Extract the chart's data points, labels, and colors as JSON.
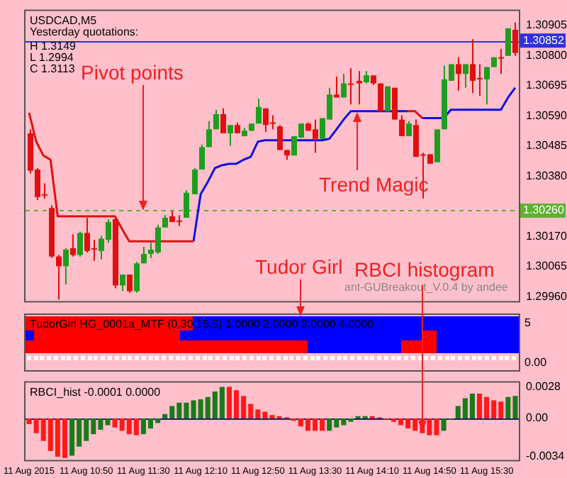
{
  "chart_data": [
    {
      "type": "candlestick",
      "title": "USDCAD,M5",
      "categories": [
        "11 Aug 2015",
        null,
        null,
        null,
        null,
        null,
        null,
        null,
        "11 Aug 10:50",
        null,
        null,
        null,
        null,
        null,
        null,
        null,
        "11 Aug 11:30",
        null,
        null,
        null,
        null,
        null,
        null,
        null,
        "11 Aug 12:10",
        null,
        null,
        null,
        null,
        null,
        null,
        null,
        "11 Aug 12:50",
        null,
        null,
        null,
        null,
        null,
        null,
        null,
        "11 Aug 13:30",
        null,
        null,
        null,
        null,
        null,
        null,
        null,
        "11 Aug 14:10",
        null,
        null,
        null,
        null,
        null,
        null,
        null,
        "11 Aug 14:50",
        null,
        null,
        null,
        null,
        null,
        null,
        null,
        "11 Aug 15:30",
        null,
        null,
        null,
        null
      ],
      "ohlc": [
        [
          1.30529,
          1.30543,
          1.30389,
          1.30399
        ],
        [
          1.30403,
          1.30408,
          1.30297,
          1.30307
        ],
        [
          1.30317,
          1.30355,
          1.30302,
          1.30312
        ],
        [
          1.30269,
          1.30278,
          1.30095,
          1.301
        ],
        [
          1.301,
          1.30105,
          1.2995,
          1.30066
        ],
        [
          1.30066,
          1.30129,
          1.30003,
          1.30124
        ],
        [
          1.30129,
          1.30177,
          1.301,
          1.30105
        ],
        [
          1.30105,
          1.30187,
          1.301,
          1.30182
        ],
        [
          1.30182,
          1.30235,
          1.30114,
          1.30119
        ],
        [
          1.30124,
          1.30158,
          1.30085,
          1.30129
        ],
        [
          1.30119,
          1.30172,
          1.3009,
          1.30162
        ],
        [
          1.30158,
          1.3023,
          1.30148,
          1.3022
        ],
        [
          1.3023,
          1.30235,
          1.29989,
          1.29999
        ],
        [
          1.29999,
          1.30037,
          1.29979,
          1.30037
        ],
        [
          1.30037,
          1.30037,
          1.29974,
          1.29979
        ],
        [
          1.29979,
          1.30081,
          1.29974,
          1.30076
        ],
        [
          1.30076,
          1.30134,
          1.30076,
          1.30109
        ],
        [
          1.30109,
          1.30148,
          1.30095,
          1.30124
        ],
        [
          1.30114,
          1.30211,
          1.30109,
          1.30201
        ],
        [
          1.30201,
          1.30244,
          1.30201,
          1.30235
        ],
        [
          1.3024,
          1.30259,
          1.3022,
          1.3022
        ],
        [
          1.30225,
          1.30244,
          1.30206,
          1.30225
        ],
        [
          1.30235,
          1.30331,
          1.30235,
          1.30322
        ],
        [
          1.30317,
          1.30408,
          1.30317,
          1.30403
        ],
        [
          1.30403,
          1.3049,
          1.30403,
          1.30481
        ],
        [
          1.30481,
          1.30572,
          1.30481,
          1.30543
        ],
        [
          1.30543,
          1.30611,
          1.30543,
          1.30596
        ],
        [
          1.30596,
          1.30616,
          1.30529,
          1.30529
        ],
        [
          1.30529,
          1.30558,
          1.30485,
          1.30558
        ],
        [
          1.30558,
          1.30567,
          1.30529,
          1.30529
        ],
        [
          1.30519,
          1.30548,
          1.30519,
          1.30538
        ],
        [
          1.30538,
          1.30563,
          1.30538,
          1.30563
        ],
        [
          1.30563,
          1.3065,
          1.30563,
          1.30621
        ],
        [
          1.30616,
          1.30616,
          1.30534,
          1.30558
        ],
        [
          1.30567,
          1.30592,
          1.30543,
          1.30567
        ],
        [
          1.30553,
          1.30558,
          1.30471,
          1.30471
        ],
        [
          1.30471,
          1.30471,
          1.30437,
          1.30452
        ],
        [
          1.30452,
          1.30519,
          1.30452,
          1.30519
        ],
        [
          1.30514,
          1.30563,
          1.30514,
          1.30563
        ],
        [
          1.30563,
          1.30567,
          1.30538,
          1.30538
        ],
        [
          1.30543,
          1.30577,
          1.30461,
          1.3051
        ],
        [
          1.3051,
          1.30582,
          1.3051,
          1.30582
        ],
        [
          1.30577,
          1.30688,
          1.30577,
          1.30664
        ],
        [
          1.30664,
          1.30727,
          1.30654,
          1.30654
        ],
        [
          1.30654,
          1.30736,
          1.30654,
          1.30703
        ],
        [
          1.30703,
          1.30756,
          1.3063,
          1.30703
        ],
        [
          1.30712,
          1.30746,
          1.3063,
          1.30703
        ],
        [
          1.30707,
          1.30746,
          1.30703,
          1.30731
        ],
        [
          1.30731,
          1.30731,
          1.30698,
          1.30703
        ],
        [
          1.30703,
          1.30703,
          1.30606,
          1.30606
        ],
        [
          1.30606,
          1.30693,
          1.30606,
          1.30693
        ],
        [
          1.30688,
          1.30688,
          1.30577,
          1.30577
        ],
        [
          1.30577,
          1.30592,
          1.30519,
          1.30519
        ],
        [
          1.30519,
          1.30572,
          1.30519,
          1.30563
        ],
        [
          1.30558,
          1.30577,
          1.30447,
          1.30447
        ],
        [
          1.30456,
          1.30461,
          1.30302,
          1.30456
        ],
        [
          1.30456,
          1.30456,
          1.30423,
          1.30423
        ],
        [
          1.30428,
          1.30543,
          1.30428,
          1.30543
        ],
        [
          1.30543,
          1.30765,
          1.30543,
          1.30717
        ],
        [
          1.30712,
          1.3077,
          1.30712,
          1.3077
        ],
        [
          1.3077,
          1.30794,
          1.30678,
          1.30736
        ],
        [
          1.30736,
          1.3077,
          1.30688,
          1.3077
        ],
        [
          1.3077,
          1.30857,
          1.30669,
          1.30712
        ],
        [
          1.30722,
          1.3077,
          1.30659,
          1.30722
        ],
        [
          1.30717,
          1.3076,
          1.3063,
          1.3076
        ],
        [
          1.3076,
          1.30794,
          1.3076,
          1.30794
        ],
        [
          1.30794,
          1.30823,
          1.30736,
          1.30794
        ],
        [
          1.30799,
          1.30895,
          1.30799,
          1.30895
        ],
        [
          1.3089,
          1.30915,
          1.30799,
          1.30809
        ]
      ],
      "colors": [
        "#e01010",
        "#e01010",
        "#e01010",
        "#e01010",
        "#e01010",
        "#1e9e1e",
        "#e01010",
        "#1e9e1e",
        "#e01010",
        "#e01010",
        "#1e9e1e",
        "#1e9e1e",
        "#e01010",
        "#1e9e1e",
        "#e01010",
        "#1e9e1e",
        "#1e9e1e",
        "#1e9e1e",
        "#1e9e1e",
        "#1e9e1e",
        "#e01010",
        "#e01010",
        "#1e9e1e",
        "#1e9e1e",
        "#1e9e1e",
        "#1e9e1e",
        "#1e9e1e",
        "#e01010",
        "#1e9e1e",
        "#e01010",
        "#1e9e1e",
        "#1e9e1e",
        "#1e9e1e",
        "#e01010",
        "#e01010",
        "#e01010",
        "#e01010",
        "#1e9e1e",
        "#1e9e1e",
        "#e01010",
        "#e01010",
        "#1e9e1e",
        "#1e9e1e",
        "#e01010",
        "#1e9e1e",
        "#e01010",
        "#e01010",
        "#1e9e1e",
        "#e01010",
        "#e01010",
        "#1e9e1e",
        "#e01010",
        "#e01010",
        "#1e9e1e",
        "#e01010",
        "#e01010",
        "#e01010",
        "#1e9e1e",
        "#1e9e1e",
        "#1e9e1e",
        "#e01010",
        "#1e9e1e",
        "#e01010",
        "#e01010",
        "#1e9e1e",
        "#1e9e1e",
        "#e01010",
        "#1e9e1e",
        "#e01010"
      ],
      "series": [
        {
          "type": "line",
          "color": "#e01010",
          "values": [
            1.30601,
            1.305,
            1.30452,
            1.30437,
            1.3024,
            1.3024,
            1.3024,
            1.3024,
            1.3024,
            1.3024,
            1.3024,
            1.3024,
            1.3024,
            1.30196,
            1.30153,
            1.30153,
            1.30153,
            1.30153,
            1.30153,
            1.30153,
            1.30153,
            1.30153,
            1.30153,
            1.30153,
            null,
            null,
            null,
            null,
            null,
            null,
            null,
            null,
            null,
            null,
            null,
            null,
            null,
            null,
            null,
            null,
            null,
            null,
            null,
            null,
            null,
            null,
            null,
            null,
            null,
            null,
            null,
            null,
            null,
            1.30606,
            1.30606,
            1.30582,
            null,
            null,
            null,
            null,
            null,
            null,
            null,
            null,
            null,
            null,
            null,
            null,
            null
          ]
        },
        {
          "type": "line",
          "color": "#1010e0",
          "values": [
            null,
            null,
            null,
            null,
            null,
            null,
            null,
            null,
            null,
            null,
            null,
            null,
            null,
            null,
            null,
            null,
            null,
            null,
            null,
            null,
            null,
            null,
            null,
            1.30153,
            1.30317,
            1.3036,
            1.30408,
            1.30418,
            1.30423,
            1.30423,
            1.30437,
            1.30447,
            1.305,
            1.30505,
            1.30505,
            1.30505,
            1.30505,
            1.30505,
            1.30505,
            1.30505,
            1.30505,
            1.30505,
            1.3051,
            1.30543,
            1.30577,
            1.30606,
            1.30606,
            1.30606,
            1.30606,
            1.30606,
            1.30606,
            1.30606,
            1.30606,
            1.30606,
            null,
            1.30582,
            1.30582,
            1.30582,
            1.30582,
            1.30611,
            1.30611,
            1.30611,
            1.30611,
            1.30611,
            1.30611,
            1.30611,
            1.30611,
            1.30654,
            1.30688
          ]
        }
      ],
      "ylim": [
        1.2994,
        1.3096
      ],
      "yticks": [
        1.30905,
        {
          "value": 1.308,
          "label": "1.30800"
        },
        1.30695,
        {
          "value": 1.3059,
          "label": "1.30590"
        },
        1.30485,
        {
          "value": 1.3038,
          "label": "1.30380"
        },
        {
          "value": 1.3017,
          "label": "1.30170"
        },
        1.30065,
        {
          "value": 1.2996,
          "label": "1.29960"
        }
      ],
      "tick_labels": "y",
      "ref_lines": [
        {
          "axis": "y",
          "value": 1.30852,
          "label": "1.30852",
          "color": "#3030e0",
          "line_style": "solid"
        },
        {
          "axis": "y",
          "value": 1.3026,
          "label": "1.30260",
          "color": "#60b030",
          "line_style": "dashed"
        }
      ],
      "annotations": [
        "Yesterday quotations:",
        "H 1.3149",
        "L 1.2994",
        "C 1.3113",
        {
          "text": "Pivot points",
          "x": "11 Aug 11:30",
          "y": 1.3026
        },
        "Trend Magic",
        "Tudor Girl",
        "ant-GUBreakout_V.0.4 by andee"
      ]
    },
    {
      "type": "other",
      "title": "TudorGirl HG_0001a_MTF (0,30,15,5) 1.0000 2.0000 3.0000 4.0000",
      "annotations": [
        "5",
        "0.00"
      ]
    },
    {
      "type": "bar",
      "title": "RBCI_hist -0.0001 0.0000",
      "categories": [
        "11 Aug 2015",
        null,
        null,
        null,
        null,
        null,
        null,
        null,
        "11 Aug 10:50",
        null,
        null,
        null,
        null,
        null,
        null,
        null,
        "11 Aug 11:30",
        null,
        null,
        null,
        null,
        null,
        null,
        null,
        "11 Aug 12:10",
        null,
        null,
        null,
        null,
        null,
        null,
        null,
        "11 Aug 12:50",
        null,
        null,
        null,
        null,
        null,
        null,
        null,
        "11 Aug 13:30",
        null,
        null,
        null,
        null,
        null,
        null,
        null,
        "11 Aug 14:10",
        null,
        null,
        null,
        null,
        null,
        null,
        null,
        "11 Aug 14:50",
        null,
        null,
        null,
        null,
        null,
        null,
        null,
        "11 Aug 15:30",
        null,
        null,
        null,
        null
      ],
      "values": [
        -0.0005,
        -0.0013,
        -0.002,
        -0.0029,
        -0.0034,
        -0.0035,
        -0.0033,
        -0.0025,
        -0.002,
        -0.0014,
        -0.001,
        -0.0006,
        -0.0008,
        -0.0011,
        -0.0014,
        -0.0015,
        -0.0014,
        -0.0009,
        -0.0004,
        0.0004,
        0.0011,
        0.0014,
        0.0014,
        0.0016,
        0.0017,
        0.0019,
        0.0024,
        0.0028,
        0.0028,
        0.0025,
        0.002,
        0.0013,
        0.0008,
        0.0006,
        0.0003,
        0.0002,
        0.0001,
        -0.0002,
        -0.0007,
        -0.0011,
        -0.0011,
        -0.0011,
        -0.0011,
        -0.0008,
        -0.0006,
        -0.0003,
        0.0002,
        0.0002,
        0.0002,
        0.0001,
        -0.0001,
        -0.0003,
        -0.0006,
        -0.0009,
        -0.0011,
        -0.0013,
        -0.0015,
        -0.0015,
        -0.0011,
        -0.0001,
        0.0011,
        0.0018,
        0.0022,
        0.0022,
        0.0019,
        0.0016,
        0.0015,
        0.0019,
        0.002
      ],
      "colors": [
        "#ff1a1a",
        "#ff1a1a",
        "#ff1a1a",
        "#ff1a1a",
        "#ff1a1a",
        "#ff1a1a",
        "#1a7a1a",
        "#1a7a1a",
        "#1a7a1a",
        "#1a7a1a",
        "#1a7a1a",
        "#1a7a1a",
        "#ff1a1a",
        "#ff1a1a",
        "#ff1a1a",
        "#ff1a1a",
        "#1a7a1a",
        "#1a7a1a",
        "#1a7a1a",
        "#1a7a1a",
        "#1a7a1a",
        "#1a7a1a",
        "#1a7a1a",
        "#1a7a1a",
        "#1a7a1a",
        "#1a7a1a",
        "#1a7a1a",
        "#1a7a1a",
        "#ff1a1a",
        "#ff1a1a",
        "#ff1a1a",
        "#ff1a1a",
        "#ff1a1a",
        "#ff1a1a",
        "#ff1a1a",
        "#ff1a1a",
        "#ff1a1a",
        "#ff1a1a",
        "#ff1a1a",
        "#ff1a1a",
        "#ff1a1a",
        "#ff1a1a",
        "#1a7a1a",
        "#1a7a1a",
        "#1a7a1a",
        "#1a7a1a",
        "#1a7a1a",
        "#1a7a1a",
        "#ff1a1a",
        "#ff1a1a",
        "#ff1a1a",
        "#ff1a1a",
        "#ff1a1a",
        "#ff1a1a",
        "#ff1a1a",
        "#ff1a1a",
        "#ff1a1a",
        "#ff1a1a",
        "#1a7a1a",
        "#1a7a1a",
        "#1a7a1a",
        "#1a7a1a",
        "#1a7a1a",
        "#ff1a1a",
        "#ff1a1a",
        "#ff1a1a",
        "#ff1a1a",
        "#1a7a1a",
        "#1a7a1a"
      ],
      "ylim": [
        -0.0038,
        0.0033
      ],
      "yticks": [
        0.0028,
        {
          "value": 0,
          "label": "0.00"
        },
        -0.0034
      ],
      "ref_lines": [
        {
          "axis": "y",
          "value": 0,
          "color": "#202060"
        }
      ],
      "annotations": [
        {
          "text": "RBCI histogram",
          "y": -0.0011
        }
      ]
    }
  ]
}
